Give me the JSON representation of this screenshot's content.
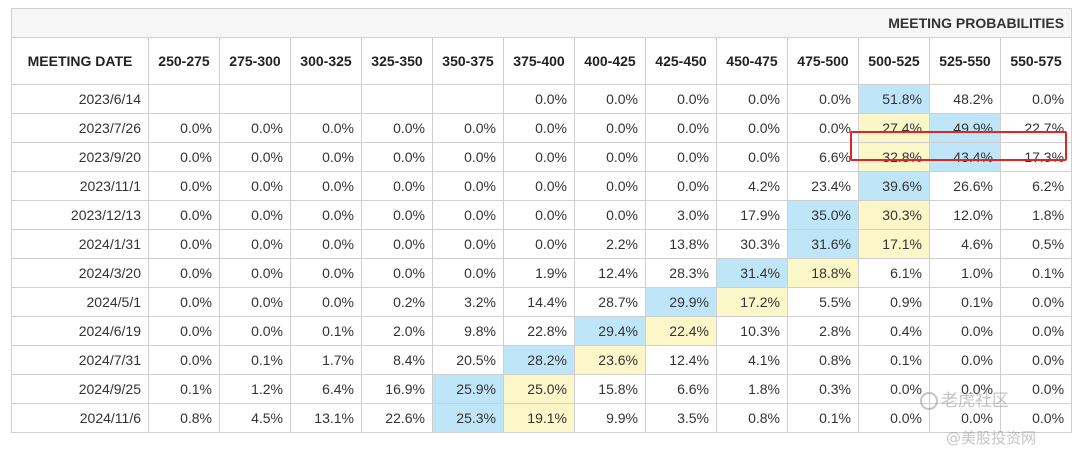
{
  "title": "MEETING PROBABILITIES",
  "header_label": "MEETING DATE",
  "columns": [
    "250-275",
    "275-300",
    "300-325",
    "325-350",
    "350-375",
    "375-400",
    "400-425",
    "425-450",
    "450-475",
    "475-500",
    "500-525",
    "525-550",
    "550-575"
  ],
  "rows": [
    {
      "date": "2023/6/14",
      "values": [
        "",
        "",
        "",
        "",
        "",
        "0.0%",
        "0.0%",
        "0.0%",
        "0.0%",
        "0.0%",
        "51.8%",
        "48.2%",
        "0.0%"
      ],
      "blue": 10,
      "yellow": -1
    },
    {
      "date": "2023/7/26",
      "values": [
        "0.0%",
        "0.0%",
        "0.0%",
        "0.0%",
        "0.0%",
        "0.0%",
        "0.0%",
        "0.0%",
        "0.0%",
        "0.0%",
        "27.4%",
        "49.9%",
        "22.7%"
      ],
      "blue": 11,
      "yellow": 10
    },
    {
      "date": "2023/9/20",
      "values": [
        "0.0%",
        "0.0%",
        "0.0%",
        "0.0%",
        "0.0%",
        "0.0%",
        "0.0%",
        "0.0%",
        "0.0%",
        "6.6%",
        "32.8%",
        "43.4%",
        "17.3%"
      ],
      "blue": 11,
      "yellow": 10
    },
    {
      "date": "2023/11/1",
      "values": [
        "0.0%",
        "0.0%",
        "0.0%",
        "0.0%",
        "0.0%",
        "0.0%",
        "0.0%",
        "0.0%",
        "4.2%",
        "23.4%",
        "39.6%",
        "26.6%",
        "6.2%"
      ],
      "blue": 10,
      "yellow": -1
    },
    {
      "date": "2023/12/13",
      "values": [
        "0.0%",
        "0.0%",
        "0.0%",
        "0.0%",
        "0.0%",
        "0.0%",
        "0.0%",
        "3.0%",
        "17.9%",
        "35.0%",
        "30.3%",
        "12.0%",
        "1.8%"
      ],
      "blue": 9,
      "yellow": 10
    },
    {
      "date": "2024/1/31",
      "values": [
        "0.0%",
        "0.0%",
        "0.0%",
        "0.0%",
        "0.0%",
        "0.0%",
        "2.2%",
        "13.8%",
        "30.3%",
        "31.6%",
        "17.1%",
        "4.6%",
        "0.5%"
      ],
      "blue": 9,
      "yellow": 10
    },
    {
      "date": "2024/3/20",
      "values": [
        "0.0%",
        "0.0%",
        "0.0%",
        "0.0%",
        "0.0%",
        "1.9%",
        "12.4%",
        "28.3%",
        "31.4%",
        "18.8%",
        "6.1%",
        "1.0%",
        "0.1%"
      ],
      "blue": 8,
      "yellow": 9
    },
    {
      "date": "2024/5/1",
      "values": [
        "0.0%",
        "0.0%",
        "0.0%",
        "0.2%",
        "3.2%",
        "14.4%",
        "28.7%",
        "29.9%",
        "17.2%",
        "5.5%",
        "0.9%",
        "0.1%",
        "0.0%"
      ],
      "blue": 7,
      "yellow": 8
    },
    {
      "date": "2024/6/19",
      "values": [
        "0.0%",
        "0.0%",
        "0.1%",
        "2.0%",
        "9.8%",
        "22.8%",
        "29.4%",
        "22.4%",
        "10.3%",
        "2.8%",
        "0.4%",
        "0.0%",
        "0.0%"
      ],
      "blue": 6,
      "yellow": 7
    },
    {
      "date": "2024/7/31",
      "values": [
        "0.0%",
        "0.1%",
        "1.7%",
        "8.4%",
        "20.5%",
        "28.2%",
        "23.6%",
        "12.4%",
        "4.1%",
        "0.8%",
        "0.1%",
        "0.0%",
        "0.0%"
      ],
      "blue": 5,
      "yellow": 6
    },
    {
      "date": "2024/9/25",
      "values": [
        "0.1%",
        "1.2%",
        "6.4%",
        "16.9%",
        "25.9%",
        "25.0%",
        "15.8%",
        "6.6%",
        "1.8%",
        "0.3%",
        "0.0%",
        "0.0%",
        "0.0%"
      ],
      "blue": 4,
      "yellow": 5
    },
    {
      "date": "2024/11/6",
      "values": [
        "0.8%",
        "4.5%",
        "13.1%",
        "22.6%",
        "25.3%",
        "19.1%",
        "9.9%",
        "3.5%",
        "0.8%",
        "0.1%",
        "0.0%",
        "0.0%",
        "0.0%"
      ],
      "blue": 4,
      "yellow": 5
    }
  ],
  "watermark": {
    "line1": "老虎社区",
    "line2": "@美股投资网"
  },
  "colors": {
    "blue": "#bfe6f8",
    "yellow": "#fbf7c9",
    "highlight": "#e02525"
  }
}
